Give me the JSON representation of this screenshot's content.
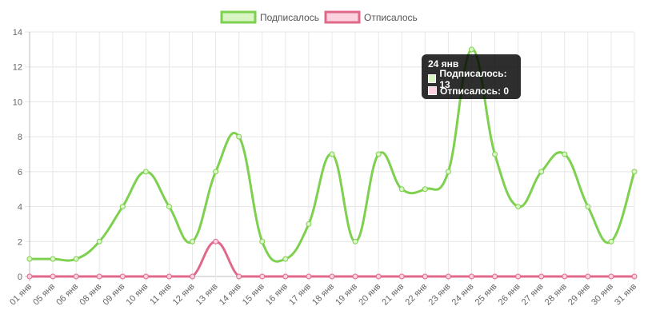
{
  "chart_data": {
    "type": "line",
    "categories": [
      "01 янв",
      "05 янв",
      "06 янв",
      "08 янв",
      "09 янв",
      "10 янв",
      "11 янв",
      "12 янв",
      "13 янв",
      "14 янв",
      "15 янв",
      "16 янв",
      "17 янв",
      "18 янв",
      "19 янв",
      "20 янв",
      "21 янв",
      "22 янв",
      "23 янв",
      "24 янв",
      "25 янв",
      "26 янв",
      "27 янв",
      "28 янв",
      "29 янв",
      "30 янв",
      "31 янв"
    ],
    "series": [
      {
        "name": "Подписалось",
        "color": "#7ed04f",
        "fill": "#d9f5c4",
        "values": [
          1,
          1,
          1,
          2,
          4,
          6,
          4,
          2,
          6,
          8,
          2,
          1,
          3,
          7,
          2,
          7,
          5,
          5,
          6,
          13,
          7,
          4,
          6,
          7,
          4,
          2,
          6
        ]
      },
      {
        "name": "Отписалось",
        "color": "#e0698a",
        "fill": "#fbd2dd",
        "values": [
          0,
          0,
          0,
          0,
          0,
          0,
          0,
          0,
          2,
          0,
          0,
          0,
          0,
          0,
          0,
          0,
          0,
          0,
          0,
          0,
          0,
          0,
          0,
          0,
          0,
          0,
          0
        ]
      }
    ],
    "yticks": [
      "0",
      "2",
      "4",
      "6",
      "8",
      "10",
      "12",
      "14"
    ],
    "ylim": [
      0,
      14
    ],
    "grid": true,
    "legend": "top-center"
  },
  "tooltip": {
    "title": "24 янв",
    "rows": [
      {
        "label": "Подписалось: 13",
        "swatch": "#d9f5c4"
      },
      {
        "label": "Отписалось: 0",
        "swatch": "#fbd2dd"
      }
    ]
  }
}
